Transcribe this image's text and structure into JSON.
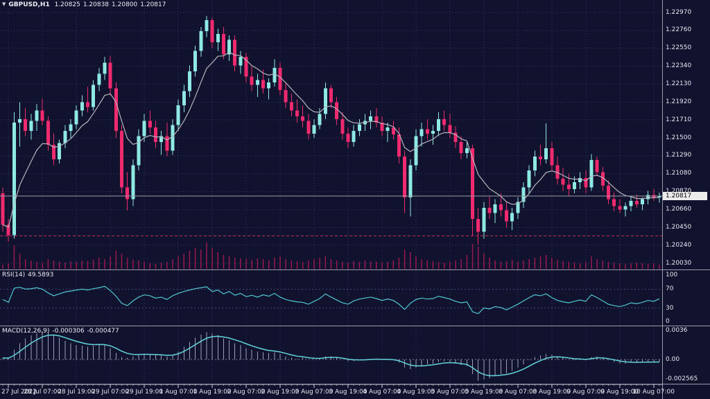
{
  "header": {
    "dropdown_icon": "▼",
    "symbol": "GBPUSD,H1",
    "open": "1.20825",
    "high": "1.20838",
    "low": "1.20800",
    "close": "1.20817"
  },
  "price_axis": {
    "ticks": [
      "1.22970",
      "1.22760",
      "1.22550",
      "1.22340",
      "1.22130",
      "1.21920",
      "1.21710",
      "1.21500",
      "1.21290",
      "1.21080",
      "1.20870",
      "1.20660",
      "1.20450",
      "1.20240",
      "1.20030"
    ],
    "current_tag": "1.20817"
  },
  "rsi_pane": {
    "name": "RSI(14)",
    "value": "49.5893",
    "axis_ticks": [
      "100",
      "70",
      "30",
      "0"
    ],
    "axis_tick_values": [
      100,
      70,
      30,
      0
    ]
  },
  "macd_pane": {
    "name": "MACD(12,26,9)",
    "value_main": "-0.000306",
    "value_signal": "-0.000477",
    "axis_ticks": [
      "0.0036",
      "0.00",
      "-0.002565"
    ],
    "axis_tick_values": [
      0.0036,
      0,
      -0.002565
    ]
  },
  "colors": {
    "background": "#11132e",
    "grid": "#353862",
    "bull": "#8de9e1",
    "bear": "#ef2a6e",
    "ma_line": "#b5b6bf",
    "bid_line": "#9a9cab",
    "price_tag_bg": "#ececec",
    "volume": "#99194f",
    "level_line": "#c22a62",
    "rsi_line": "#4fc8d4",
    "rsi_level": "#454878",
    "macd_histogram": "#9ba0b8",
    "macd_signal": "#62d4dc",
    "pane_border": "#9a9cab",
    "axis_text": "#e6e8f0"
  },
  "chart_data": {
    "type": "candlestick",
    "symbol": "GBPUSD",
    "timeframe": "H1",
    "title": "GBPUSD,H1  1.20825 1.20838 1.20800 1.20817",
    "x_labels": [
      "27 Jul 2022",
      "28 Jul 07:00",
      "28 Jul 19:00",
      "29 Jul 07:00",
      "29 Jul 19:00",
      "1 Aug 07:00",
      "1 Aug 19:00",
      "2 Aug 07:00",
      "2 Aug 19:00",
      "3 Aug 07:00",
      "3 Aug 19:00",
      "4 Aug 07:00",
      "4 Aug 19:00",
      "5 Aug 07:00",
      "5 Aug 19:00",
      "8 Aug 07:00",
      "8 Aug 19:00",
      "9 Aug 07:00",
      "9 Aug 19:00",
      "10 Aug 07:00"
    ],
    "first_label_index": 1,
    "label_every": 6,
    "y_ticks": [
      1.2297,
      1.2276,
      1.2255,
      1.2234,
      1.2213,
      1.2192,
      1.2171,
      1.215,
      1.2129,
      1.2108,
      1.2087,
      1.2066,
      1.2045,
      1.2024,
      1.2003
    ],
    "ylim": [
      1.1995,
      1.2312
    ],
    "grid": true,
    "legend_position": "none",
    "bid_price": 1.20817,
    "level_line_price": 1.2035,
    "ma_period": 8,
    "candles": [
      [
        1.2085,
        1.2092,
        1.204,
        1.2048
      ],
      [
        1.2048,
        1.2055,
        1.2028,
        1.2036
      ],
      [
        1.2036,
        1.218,
        1.2032,
        1.2168
      ],
      [
        1.2168,
        1.2192,
        1.214,
        1.2172
      ],
      [
        1.2172,
        1.2185,
        1.2152,
        1.2158
      ],
      [
        1.2158,
        1.2178,
        1.2148,
        1.217
      ],
      [
        1.217,
        1.219,
        1.2158,
        1.2182
      ],
      [
        1.2182,
        1.2196,
        1.2165,
        1.217
      ],
      [
        1.217,
        1.2175,
        1.2135,
        1.2142
      ],
      [
        1.2142,
        1.2155,
        1.2118,
        1.2125
      ],
      [
        1.2125,
        1.2148,
        1.212,
        1.2144
      ],
      [
        1.2144,
        1.2165,
        1.2138,
        1.2158
      ],
      [
        1.2158,
        1.2172,
        1.215,
        1.2166
      ],
      [
        1.2166,
        1.2188,
        1.216,
        1.2182
      ],
      [
        1.2182,
        1.22,
        1.2175,
        1.2192
      ],
      [
        1.2192,
        1.221,
        1.218,
        1.2186
      ],
      [
        1.2186,
        1.2218,
        1.2182,
        1.2212
      ],
      [
        1.2212,
        1.2232,
        1.2205,
        1.2225
      ],
      [
        1.2225,
        1.2245,
        1.2218,
        1.2238
      ],
      [
        1.2238,
        1.2246,
        1.22,
        1.2208
      ],
      [
        1.2208,
        1.2215,
        1.215,
        1.2158
      ],
      [
        1.2158,
        1.2165,
        1.2085,
        1.2092
      ],
      [
        1.2092,
        1.211,
        1.2065,
        1.2078
      ],
      [
        1.2078,
        1.2125,
        1.207,
        1.2118
      ],
      [
        1.2118,
        1.216,
        1.2112,
        1.2152
      ],
      [
        1.2152,
        1.2178,
        1.2145,
        1.217
      ],
      [
        1.217,
        1.2182,
        1.2155,
        1.2162
      ],
      [
        1.2162,
        1.217,
        1.2138,
        1.2145
      ],
      [
        1.2145,
        1.2158,
        1.213,
        1.2152
      ],
      [
        1.2152,
        1.2168,
        1.2128,
        1.2135
      ],
      [
        1.2135,
        1.2172,
        1.213,
        1.2165
      ],
      [
        1.2165,
        1.2195,
        1.2158,
        1.2188
      ],
      [
        1.2188,
        1.2212,
        1.218,
        1.2205
      ],
      [
        1.2205,
        1.2235,
        1.2198,
        1.2228
      ],
      [
        1.2228,
        1.2258,
        1.2222,
        1.2252
      ],
      [
        1.2252,
        1.228,
        1.2245,
        1.2275
      ],
      [
        1.2275,
        1.2293,
        1.2268,
        1.2288
      ],
      [
        1.2288,
        1.2291,
        1.2255,
        1.2262
      ],
      [
        1.2262,
        1.2278,
        1.2252,
        1.2272
      ],
      [
        1.2272,
        1.228,
        1.2242,
        1.2248
      ],
      [
        1.2248,
        1.227,
        1.224,
        1.2265
      ],
      [
        1.2265,
        1.227,
        1.2228,
        1.2235
      ],
      [
        1.2235,
        1.2252,
        1.2225,
        1.2245
      ],
      [
        1.2245,
        1.225,
        1.2215,
        1.2222
      ],
      [
        1.2222,
        1.2235,
        1.2205,
        1.2212
      ],
      [
        1.2212,
        1.2225,
        1.2198,
        1.2218
      ],
      [
        1.2218,
        1.223,
        1.2202,
        1.2208
      ],
      [
        1.2208,
        1.222,
        1.2195,
        1.2215
      ],
      [
        1.2215,
        1.2242,
        1.221,
        1.2232
      ],
      [
        1.2232,
        1.2238,
        1.22,
        1.2206
      ],
      [
        1.2206,
        1.2215,
        1.2185,
        1.2192
      ],
      [
        1.2192,
        1.2202,
        1.2175,
        1.2182
      ],
      [
        1.2182,
        1.2195,
        1.2168,
        1.2175
      ],
      [
        1.2175,
        1.2188,
        1.2162,
        1.217
      ],
      [
        1.217,
        1.2178,
        1.2148,
        1.2155
      ],
      [
        1.2155,
        1.2172,
        1.215,
        1.2165
      ],
      [
        1.2165,
        1.2185,
        1.216,
        1.2178
      ],
      [
        1.2178,
        1.2215,
        1.2172,
        1.2208
      ],
      [
        1.2208,
        1.2212,
        1.2185,
        1.2192
      ],
      [
        1.2192,
        1.2198,
        1.2165,
        1.2172
      ],
      [
        1.2172,
        1.218,
        1.2148,
        1.2155
      ],
      [
        1.2155,
        1.2162,
        1.2138,
        1.2145
      ],
      [
        1.2145,
        1.2165,
        1.214,
        1.2158
      ],
      [
        1.2158,
        1.2172,
        1.2152,
        1.2166
      ],
      [
        1.2166,
        1.2178,
        1.2158,
        1.217
      ],
      [
        1.217,
        1.2182,
        1.216,
        1.2175
      ],
      [
        1.2175,
        1.2185,
        1.2162,
        1.2168
      ],
      [
        1.2168,
        1.2175,
        1.2152,
        1.2158
      ],
      [
        1.2158,
        1.2168,
        1.2145,
        1.2162
      ],
      [
        1.2162,
        1.217,
        1.2148,
        1.2154
      ],
      [
        1.2154,
        1.2162,
        1.212,
        1.2128
      ],
      [
        1.2128,
        1.2135,
        1.2062,
        1.208
      ],
      [
        1.208,
        1.2125,
        1.2058,
        1.2118
      ],
      [
        1.2118,
        1.216,
        1.2112,
        1.2152
      ],
      [
        1.2152,
        1.2168,
        1.214,
        1.216
      ],
      [
        1.216,
        1.2172,
        1.2148,
        1.2155
      ],
      [
        1.2155,
        1.2165,
        1.2142,
        1.2158
      ],
      [
        1.2158,
        1.218,
        1.2152,
        1.2172
      ],
      [
        1.2172,
        1.2182,
        1.2158,
        1.2165
      ],
      [
        1.2165,
        1.2178,
        1.215,
        1.2156
      ],
      [
        1.2156,
        1.2164,
        1.2138,
        1.2145
      ],
      [
        1.2145,
        1.2152,
        1.2125,
        1.2132
      ],
      [
        1.2132,
        1.2145,
        1.2126,
        1.2138
      ],
      [
        1.2138,
        1.2142,
        1.2035,
        1.2055
      ],
      [
        1.2055,
        1.2068,
        1.2025,
        1.204
      ],
      [
        1.204,
        1.2075,
        1.2032,
        1.2068
      ],
      [
        1.2068,
        1.2082,
        1.2055,
        1.2062
      ],
      [
        1.2062,
        1.2078,
        1.205,
        1.2072
      ],
      [
        1.2072,
        1.2085,
        1.2058,
        1.2065
      ],
      [
        1.2065,
        1.2075,
        1.2045,
        1.2052
      ],
      [
        1.2052,
        1.2068,
        1.2042,
        1.2062
      ],
      [
        1.2062,
        1.208,
        1.2055,
        1.2075
      ],
      [
        1.2075,
        1.2098,
        1.2068,
        1.2092
      ],
      [
        1.2092,
        1.2118,
        1.2085,
        1.2112
      ],
      [
        1.2112,
        1.2135,
        1.2105,
        1.2128
      ],
      [
        1.2128,
        1.2142,
        1.2118,
        1.2125
      ],
      [
        1.2125,
        1.2167,
        1.212,
        1.2138
      ],
      [
        1.2138,
        1.2145,
        1.2112,
        1.2118
      ],
      [
        1.2118,
        1.2128,
        1.2095,
        1.2102
      ],
      [
        1.2102,
        1.2115,
        1.2088,
        1.2095
      ],
      [
        1.2095,
        1.2108,
        1.2082,
        1.209
      ],
      [
        1.209,
        1.2105,
        1.2085,
        1.2098
      ],
      [
        1.2098,
        1.211,
        1.209,
        1.2103
      ],
      [
        1.2103,
        1.2112,
        1.2085,
        1.2092
      ],
      [
        1.2092,
        1.2131,
        1.2088,
        1.2124
      ],
      [
        1.2124,
        1.2128,
        1.2105,
        1.211
      ],
      [
        1.211,
        1.2116,
        1.2088,
        1.2094
      ],
      [
        1.2094,
        1.21,
        1.2072,
        1.2078
      ],
      [
        1.2078,
        1.2086,
        1.2064,
        1.207
      ],
      [
        1.207,
        1.2078,
        1.2062,
        1.2066
      ],
      [
        1.2066,
        1.2074,
        1.2058,
        1.207
      ],
      [
        1.207,
        1.208,
        1.2064,
        1.2076
      ],
      [
        1.2076,
        1.2084,
        1.2068,
        1.2072
      ],
      [
        1.2072,
        1.208,
        1.2065,
        1.2078
      ],
      [
        1.2078,
        1.2088,
        1.2072,
        1.2083
      ],
      [
        1.2083,
        1.209,
        1.2076,
        1.208
      ],
      [
        1.208,
        1.2086,
        1.2074,
        1.20817
      ]
    ],
    "volume": [
      6,
      8,
      34,
      22,
      14,
      12,
      10,
      9,
      14,
      12,
      10,
      9,
      11,
      10,
      12,
      11,
      13,
      16,
      14,
      18,
      26,
      22,
      16,
      13,
      12,
      10,
      8,
      7,
      9,
      10,
      14,
      18,
      22,
      26,
      30,
      28,
      38,
      30,
      24,
      20,
      18,
      16,
      15,
      14,
      13,
      15,
      14,
      12,
      16,
      18,
      14,
      12,
      11,
      10,
      12,
      14,
      16,
      18,
      14,
      12,
      10,
      9,
      11,
      10,
      12,
      11,
      10,
      9,
      10,
      12,
      16,
      28,
      24,
      18,
      14,
      12,
      11,
      10,
      9,
      10,
      12,
      14,
      20,
      36,
      32,
      22,
      16,
      12,
      10,
      11,
      13,
      10,
      12,
      14,
      16,
      18,
      20,
      16,
      13,
      11,
      10,
      9,
      8,
      10,
      18,
      14,
      12,
      10,
      9,
      8,
      7,
      8,
      9,
      8,
      7,
      8,
      6
    ],
    "rsi": {
      "period": 14,
      "last": 49.5893,
      "ylim": [
        0,
        100
      ],
      "levels": [
        70,
        30
      ],
      "values": [
        48,
        42,
        72,
        74,
        70,
        71,
        73,
        70,
        62,
        56,
        60,
        64,
        66,
        68,
        70,
        68,
        71,
        73,
        76,
        67,
        55,
        40,
        35,
        45,
        53,
        58,
        56,
        51,
        53,
        48,
        56,
        61,
        65,
        68,
        71,
        73,
        75,
        65,
        68,
        60,
        65,
        57,
        61,
        54,
        57,
        53,
        58,
        55,
        61,
        53,
        48,
        45,
        43,
        42,
        38,
        44,
        50,
        60,
        53,
        47,
        41,
        38,
        45,
        49,
        51,
        53,
        50,
        46,
        49,
        46,
        38,
        27,
        40,
        48,
        51,
        49,
        50,
        55,
        52,
        49,
        44,
        41,
        43,
        22,
        18,
        30,
        28,
        33,
        31,
        26,
        32,
        38,
        45,
        52,
        58,
        56,
        60,
        52,
        46,
        43,
        41,
        44,
        47,
        44,
        58,
        52,
        45,
        38,
        35,
        33,
        36,
        41,
        39,
        42,
        46,
        44,
        49.5893
      ],
      "line_color": "#4fc8d4"
    },
    "macd": {
      "fast": 12,
      "slow": 26,
      "signal_period": 9,
      "last_main": -0.000306,
      "last_signal": -0.000477,
      "ylim": [
        -0.002565,
        0.0036
      ],
      "values": [
        0.0002,
        0.0001,
        0.0012,
        0.002,
        0.0026,
        0.003,
        0.0033,
        0.0035,
        0.0034,
        0.0031,
        0.0027,
        0.0023,
        0.002,
        0.0018,
        0.0017,
        0.0016,
        0.0017,
        0.0019,
        0.0018,
        0.0014,
        0.0008,
        0.0003,
        0.0002,
        0.0004,
        0.0006,
        0.0007,
        0.0006,
        0.0006,
        0.0005,
        0.0004,
        0.0006,
        0.001,
        0.0016,
        0.0022,
        0.0027,
        0.0031,
        0.0034,
        0.0032,
        0.003,
        0.0026,
        0.0024,
        0.002,
        0.0018,
        0.0014,
        0.0012,
        0.001,
        0.0009,
        0.0008,
        0.0009,
        0.0007,
        0.0004,
        0.0002,
        0.0001,
        0.0002,
        0.0,
        0.0,
        0.0001,
        0.0004,
        0.0004,
        0.0002,
        0.0,
        -0.0002,
        -0.0002,
        -0.0001,
        0.0,
        0.0001,
        0.0001,
        0.0,
        0.0,
        -0.0001,
        -0.0004,
        -0.001,
        -0.0012,
        -0.001,
        -0.0008,
        -0.0006,
        -0.0005,
        -0.0003,
        -0.0002,
        -0.0003,
        -0.0005,
        -0.0007,
        -0.0008,
        -0.0018,
        -0.0026,
        -0.0025,
        -0.0023,
        -0.002,
        -0.0018,
        -0.0017,
        -0.0014,
        -0.001,
        -0.0006,
        -0.0001,
        0.0003,
        0.0005,
        0.0007,
        0.0006,
        0.0004,
        0.0002,
        0.0,
        -0.0001,
        0.0,
        -0.0001,
        0.0003,
        0.0004,
        0.0002,
        -0.0001,
        -0.0003,
        -0.0005,
        -0.0005,
        -0.0004,
        -0.0004,
        -0.0003,
        -0.0003,
        -0.0003,
        -0.000306
      ]
    }
  }
}
